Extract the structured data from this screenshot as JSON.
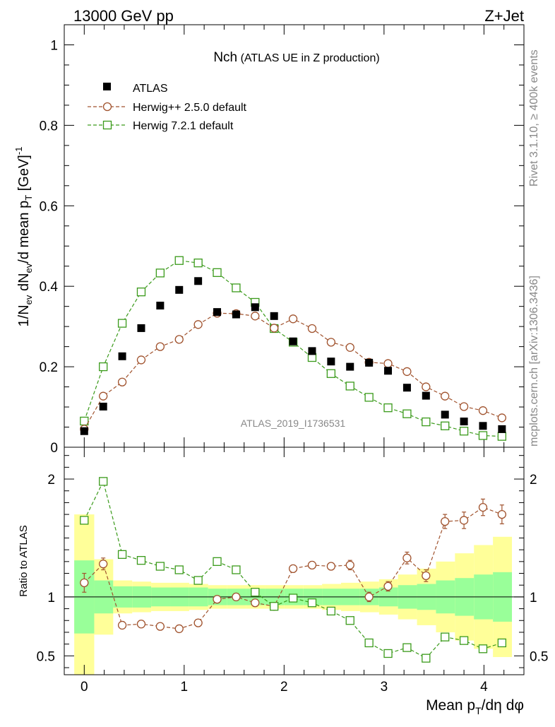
{
  "header": {
    "energy": "13000 GeV pp",
    "process": "Z+Jet",
    "side_rivet": "Rivet 3.1.10, ≥ 400k events",
    "side_site": "mcplots.cern.ch [arXiv:1306.3436]",
    "watermark": "ATLAS_2019_I1736531"
  },
  "chart_data": [
    {
      "type": "scatter",
      "panel": "main",
      "title": "Nch",
      "subtitle": "(ATLAS UE in Z production)",
      "ylabel": "1/N_ev dN_ev/d mean p_T [GeV]^-1",
      "xlabel": "Mean p_T/dη dφ",
      "xlim": [
        -0.2,
        4.4
      ],
      "ylim": [
        0,
        1.05
      ],
      "x_ticks": [
        0,
        1,
        2,
        3,
        4
      ],
      "y_ticks": [
        {
          "v": 0,
          "label": "0"
        },
        {
          "v": 0.2,
          "label": "0.2"
        },
        {
          "v": 0.4,
          "label": "0.4"
        },
        {
          "v": 0.6,
          "label": "0.6"
        },
        {
          "v": 0.8,
          "label": "0.8"
        },
        {
          "v": 1,
          "label": "1"
        }
      ],
      "x": [
        0.0,
        0.19,
        0.38,
        0.57,
        0.76,
        0.95,
        1.14,
        1.33,
        1.52,
        1.71,
        1.9,
        2.09,
        2.28,
        2.47,
        2.66,
        2.85,
        3.04,
        3.23,
        3.42,
        3.61,
        3.8,
        3.99,
        4.18
      ],
      "series": [
        {
          "name": "ATLAS",
          "marker": "filled-square",
          "color": "#000000",
          "values": [
            0.04,
            0.101,
            0.226,
            0.296,
            0.352,
            0.391,
            0.413,
            0.336,
            0.33,
            0.348,
            0.326,
            0.263,
            0.239,
            0.213,
            0.2,
            0.21,
            0.19,
            0.148,
            0.128,
            0.081,
            0.064,
            0.053,
            0.045
          ]
        },
        {
          "name": "Herwig++ 2.5.0 default",
          "marker": "open-circle",
          "color": "#a0522d",
          "values": [
            0.045,
            0.127,
            0.162,
            0.217,
            0.25,
            0.268,
            0.305,
            0.333,
            0.332,
            0.326,
            0.296,
            0.319,
            0.295,
            0.261,
            0.248,
            0.211,
            0.208,
            0.188,
            0.15,
            0.127,
            0.101,
            0.091,
            0.073
          ]
        },
        {
          "name": "Herwig 7.2.1 default",
          "marker": "open-square",
          "color": "#3a9a1a",
          "values": [
            0.065,
            0.2,
            0.308,
            0.386,
            0.433,
            0.464,
            0.458,
            0.434,
            0.396,
            0.36,
            0.295,
            0.261,
            0.223,
            0.183,
            0.152,
            0.124,
            0.098,
            0.083,
            0.063,
            0.053,
            0.04,
            0.029,
            0.027
          ]
        }
      ]
    },
    {
      "type": "scatter",
      "panel": "ratio",
      "ylabel": "Ratio to ATLAS",
      "xlim": [
        -0.2,
        4.4
      ],
      "ylim": [
        0.34,
        2.27
      ],
      "y_ticks": [
        {
          "v": 0.5,
          "label": "0.5"
        },
        {
          "v": 1,
          "label": "1"
        },
        {
          "v": 2,
          "label": "2"
        }
      ],
      "x": [
        0.0,
        0.19,
        0.38,
        0.57,
        0.76,
        0.95,
        1.14,
        1.33,
        1.52,
        1.71,
        1.9,
        2.09,
        2.28,
        2.47,
        2.66,
        2.85,
        3.04,
        3.23,
        3.42,
        3.61,
        3.8,
        3.99,
        4.18
      ],
      "band_edges": [
        -0.1,
        0.1,
        0.29,
        0.48,
        0.67,
        0.86,
        1.05,
        1.24,
        1.43,
        1.62,
        1.81,
        2.0,
        2.19,
        2.38,
        2.57,
        2.76,
        2.95,
        3.14,
        3.33,
        3.52,
        3.71,
        3.9,
        4.09,
        4.28
      ],
      "band_stat": [
        0.31,
        0.14,
        0.09,
        0.09,
        0.08,
        0.08,
        0.08,
        0.07,
        0.07,
        0.07,
        0.07,
        0.07,
        0.07,
        0.07,
        0.07,
        0.07,
        0.08,
        0.1,
        0.11,
        0.14,
        0.16,
        0.19,
        0.21
      ],
      "band_total": [
        0.7,
        0.32,
        0.14,
        0.13,
        0.12,
        0.12,
        0.11,
        0.1,
        0.1,
        0.1,
        0.1,
        0.1,
        0.1,
        0.11,
        0.12,
        0.13,
        0.15,
        0.19,
        0.24,
        0.3,
        0.37,
        0.44,
        0.51
      ],
      "series": [
        {
          "name": "Herwig++ 2.5.0 default",
          "marker": "open-circle",
          "color": "#a0522d",
          "values": [
            1.12,
            1.28,
            0.76,
            0.77,
            0.75,
            0.73,
            0.78,
            0.98,
            1.0,
            0.95,
            0.92,
            1.24,
            1.27,
            1.26,
            1.27,
            1.0,
            1.09,
            1.33,
            1.18,
            1.64,
            1.65,
            1.76,
            1.7
          ],
          "errors": [
            0.08,
            0.05,
            0.03,
            0.03,
            0.03,
            0.03,
            0.03,
            0.03,
            0.03,
            0.03,
            0.03,
            0.03,
            0.03,
            0.03,
            0.04,
            0.04,
            0.04,
            0.05,
            0.05,
            0.06,
            0.07,
            0.07,
            0.08
          ]
        },
        {
          "name": "Herwig 7.2.1 default",
          "marker": "open-square",
          "color": "#3a9a1a",
          "values": [
            1.65,
            1.98,
            1.36,
            1.31,
            1.26,
            1.23,
            1.14,
            1.3,
            1.23,
            1.04,
            0.92,
            0.99,
            0.95,
            0.88,
            0.8,
            0.61,
            0.52,
            0.57,
            0.48,
            0.66,
            0.63,
            0.56,
            0.61
          ]
        }
      ]
    }
  ]
}
